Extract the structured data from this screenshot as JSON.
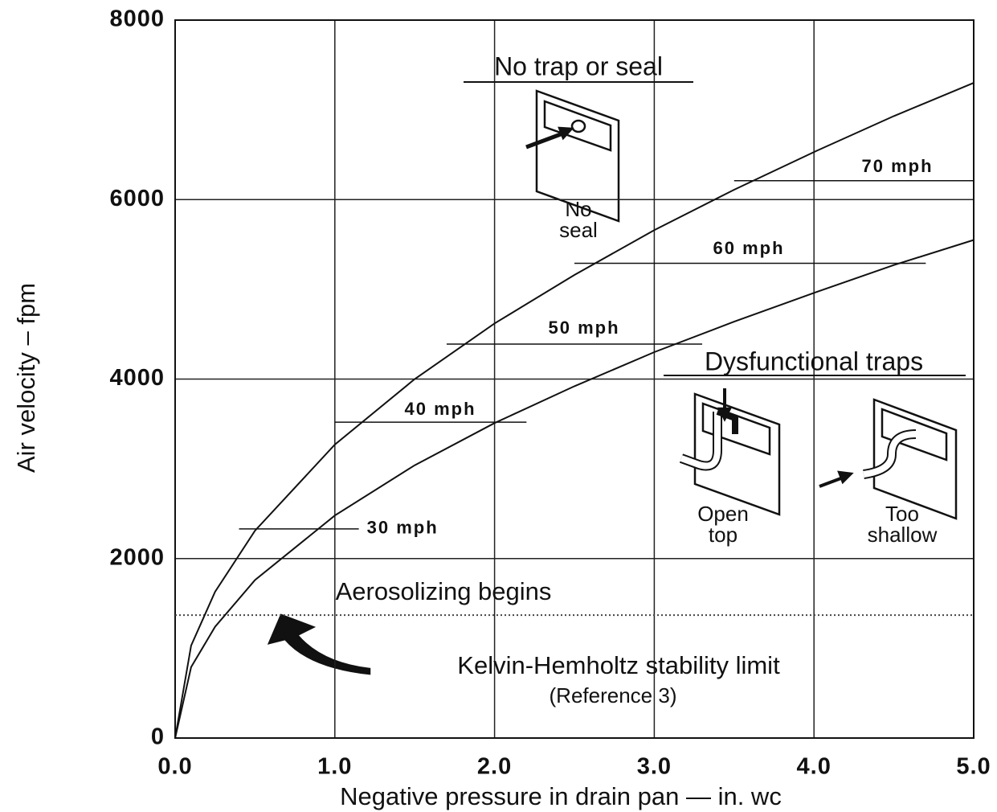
{
  "chart_data": {
    "type": "line",
    "x_label": "Negative pressure in drain pan — in. wc",
    "y_label": "Air velocity – fpm",
    "x": [
      0,
      0.1,
      0.25,
      0.5,
      1,
      1.5,
      2,
      2.5,
      3,
      3.5,
      4,
      4.5,
      5
    ],
    "series": [
      {
        "color": "#111111",
        "values": [
          0,
          1030,
          1630,
          2310,
          3270,
          4000,
          4620,
          5160,
          5660,
          6110,
          6530,
          6930,
          7300
        ]
      },
      {
        "color": "#111111",
        "values": [
          0,
          790,
          1240,
          1760,
          2480,
          3040,
          3510,
          3920,
          4300,
          4640,
          4960,
          5270,
          5550
        ]
      }
    ],
    "xlim": [
      0,
      5
    ],
    "ylim": [
      0,
      8000
    ],
    "xticks": [
      {
        "value": 0,
        "label": "0.0"
      },
      {
        "value": 1,
        "label": "1.0"
      },
      {
        "value": 2,
        "label": "2.0"
      },
      {
        "value": 3,
        "label": "3.0"
      },
      {
        "value": 4,
        "label": "4.0"
      },
      {
        "value": 5,
        "label": "5.0"
      }
    ],
    "yticks": [
      0,
      2000,
      4000,
      6000,
      8000
    ],
    "grid": true,
    "reference_lines": [
      {
        "label": "30 mph",
        "y": 2330,
        "x": [
          0.4,
          1.15
        ]
      },
      {
        "label": "40 mph",
        "y": 3520,
        "x": [
          1.0,
          2.2
        ]
      },
      {
        "label": "50 mph",
        "y": 4390,
        "x": [
          1.7,
          3.3
        ]
      },
      {
        "label": "60 mph",
        "y": 5290,
        "x": [
          2.5,
          4.7
        ]
      },
      {
        "label": "70 mph",
        "y": 6210,
        "x": [
          3.5,
          5.0
        ]
      }
    ],
    "threshold": {
      "y": 1370,
      "label": "Aerosolizing begins",
      "note": "Kelvin-Hemholtz stability limit",
      "reference": "(Reference 3)"
    },
    "insets": {
      "no_trap_title": "No trap or seal",
      "no_seal": [
        "No",
        "seal"
      ],
      "dysfunctional_title": "Dysfunctional traps",
      "open_top": [
        "Open",
        "top"
      ],
      "too_shallow": [
        "Too",
        "shallow"
      ]
    }
  }
}
